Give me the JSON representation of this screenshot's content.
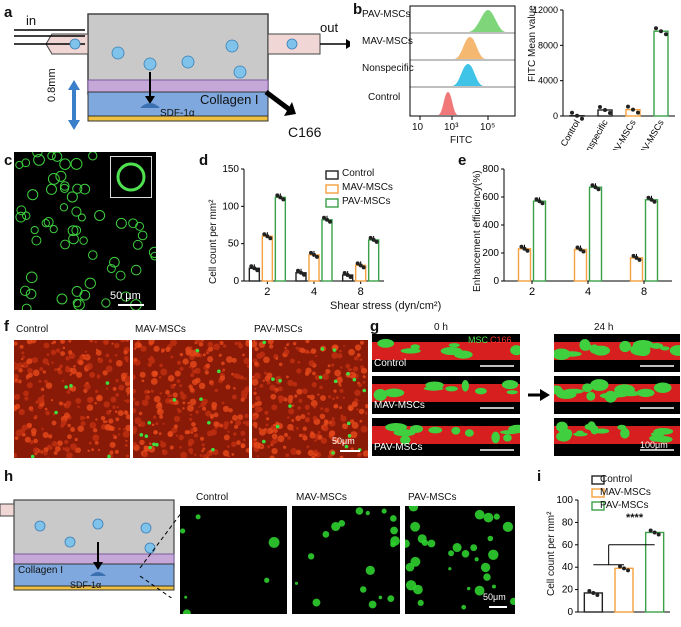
{
  "panels": {
    "a": {
      "label": "a",
      "in_label": "in",
      "out_label": "out",
      "collagen_label": "Collagen I",
      "sdf_label": "SDF-1α",
      "thickness_label": "0.8mm",
      "cell_label": "C166"
    },
    "b": {
      "label": "b",
      "histogram": {
        "rows": [
          {
            "name": "PAV-MSCs",
            "color": "#7fd67a"
          },
          {
            "name": "MAV-MSCs",
            "color": "#f5b870"
          },
          {
            "name": "Nonspecific",
            "color": "#3fc3e6"
          },
          {
            "name": "Control",
            "color": "#f07878"
          }
        ],
        "xlabel": "FITC",
        "ticks": [
          "10",
          "10³",
          "10⁵"
        ]
      },
      "bar": {
        "ylabel": "FITC Mean value",
        "yticks": [
          "0",
          "4000",
          "8000",
          "12000"
        ],
        "ylim": [
          0,
          12000
        ],
        "categories": [
          "Control",
          "Nonspecific",
          "MAV-MSCs",
          "PAV-MSCs"
        ],
        "values": [
          30,
          680,
          720,
          9600
        ],
        "bar_colors": [
          "#222222",
          "#222222",
          "#f5a040",
          "#3aa047"
        ]
      }
    },
    "c": {
      "label": "c",
      "scale": "50 µm"
    },
    "d": {
      "label": "d",
      "chart_data": {
        "type": "bar",
        "ylabel": "Cell count per mm²",
        "xlabel": "Shear stress (dyn/cm²)",
        "categories": [
          "2",
          "4",
          "8"
        ],
        "ylim": [
          0,
          150
        ],
        "yticks": [
          "0",
          "50",
          "100",
          "150"
        ],
        "series": [
          {
            "name": "Control",
            "values": [
              17,
              11,
              8
            ],
            "color": "#222222"
          },
          {
            "name": "MAV-MSCs",
            "values": [
              60,
              35,
              21
            ],
            "color": "#f5a040"
          },
          {
            "name": "PAV-MSCs",
            "values": [
              112,
              82,
              55
            ],
            "color": "#3aa047"
          }
        ]
      }
    },
    "e": {
      "label": "e",
      "chart_data": {
        "type": "bar",
        "ylabel": "Enhancement efficiency(%)",
        "categories": [
          "2",
          "4",
          "8"
        ],
        "ylim": [
          0,
          800
        ],
        "yticks": [
          "0",
          "200",
          "400",
          "600",
          "800"
        ],
        "series": [
          {
            "name": "MAV-MSCs",
            "values": [
              230,
              225,
              165
            ],
            "color": "#f5a040"
          },
          {
            "name": "PAV-MSCs",
            "values": [
              570,
              670,
              580
            ],
            "color": "#3aa047"
          }
        ]
      }
    },
    "f": {
      "label": "f",
      "images": [
        "Control",
        "MAV-MSCs",
        "PAV-MSCs"
      ],
      "scale": "50μm"
    },
    "g": {
      "label": "g",
      "time0": "0 h",
      "time24": "24 h",
      "msc": "MSC",
      "c166": "C166",
      "rows": [
        "Control",
        "MAV-MSCs",
        "PAV-MSCs"
      ],
      "scale": "100μm"
    },
    "h": {
      "label": "h",
      "collagen_label": "Collagen I",
      "sdf_label": "SDF-1α",
      "images": [
        "Control",
        "MAV-MSCs",
        "PAV-MSCs"
      ],
      "scale": "50μm"
    },
    "i": {
      "label": "i",
      "chart_data": {
        "type": "bar",
        "ylabel": "Cell count per mm²",
        "categories": [
          "Control",
          "MAV-MSCs",
          "PAV-MSCs"
        ],
        "ylim": [
          0,
          100
        ],
        "yticks": [
          "0",
          "20",
          "40",
          "60",
          "80",
          "100"
        ],
        "values": [
          17,
          39,
          71
        ],
        "colors": [
          "#222222",
          "#f5a040",
          "#3aa047"
        ],
        "significance": "****"
      }
    }
  }
}
